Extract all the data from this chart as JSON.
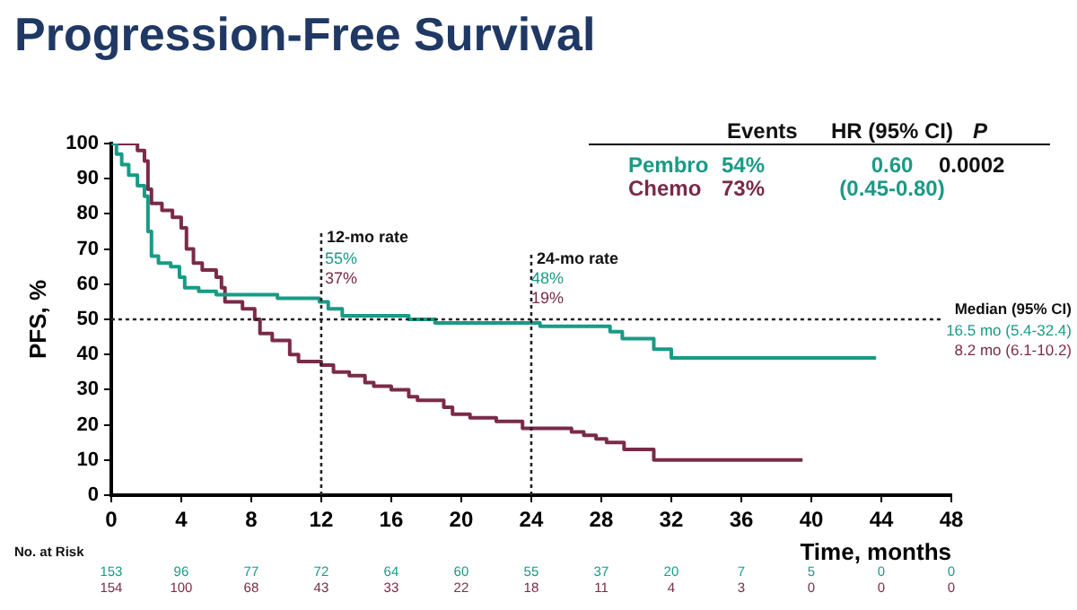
{
  "chart_data": {
    "type": "step",
    "title": "Progression-Free Survival",
    "xlabel": "Time, months",
    "ylabel": "PFS, %",
    "xlim": [
      0,
      48
    ],
    "xticks": [
      0,
      4,
      8,
      12,
      16,
      20,
      24,
      28,
      32,
      36,
      40,
      44,
      48
    ],
    "ylim": [
      0,
      100
    ],
    "yticks": [
      0,
      10,
      20,
      30,
      40,
      50,
      60,
      70,
      80,
      90,
      100
    ],
    "grid": false,
    "legend": "top right",
    "series": [
      {
        "name": "Pembro",
        "color": "#1a9a86",
        "x": [
          0,
          0.3,
          0.6,
          1,
          1.5,
          1.9,
          2.1,
          2.3,
          2.7,
          3.4,
          3.9,
          4.2,
          5,
          6,
          9.5,
          11.9,
          12.4,
          13.2,
          17,
          18.5,
          24.5,
          28.5,
          29.2,
          31,
          32,
          43.7
        ],
        "values": [
          100,
          97,
          94,
          91,
          88,
          85,
          75,
          68,
          66,
          65,
          62,
          59,
          58,
          57,
          56,
          55,
          53,
          51,
          50,
          49,
          48,
          46.5,
          44.5,
          41.5,
          39,
          39
        ]
      },
      {
        "name": "Chemo",
        "color": "#7a2a48",
        "x": [
          0,
          1.5,
          1.9,
          2.1,
          2.3,
          2.9,
          3.5,
          4,
          4.3,
          4.7,
          5.2,
          6,
          6.3,
          6.5,
          7.5,
          8.2,
          8.5,
          9.2,
          10.2,
          10.7,
          12,
          12.7,
          13.6,
          14.5,
          15,
          16,
          17,
          17.5,
          19,
          19.5,
          20.5,
          22,
          23.5,
          26.3,
          27,
          27.7,
          28.3,
          29.3,
          31,
          39.5
        ],
        "values": [
          100,
          98,
          95,
          87,
          83,
          81,
          79,
          76,
          70,
          66,
          64,
          62,
          59,
          55,
          53,
          50,
          46,
          44,
          40,
          38,
          37,
          35,
          34,
          32,
          31,
          30,
          28,
          27,
          25,
          23,
          22,
          21,
          19,
          18,
          17,
          16,
          15,
          13,
          10,
          10
        ]
      }
    ],
    "ref_lines": [
      {
        "axis": "y",
        "value": 50,
        "line_style": "dotted"
      },
      {
        "axis": "x",
        "value": 12,
        "label": "12-mo rate",
        "line_style": "dotted"
      },
      {
        "axis": "x",
        "value": 24,
        "label": "24-mo rate",
        "line_style": "dotted"
      }
    ],
    "annotations": [
      "Events",
      "HR (95% CI)",
      "P",
      "54%",
      "73%",
      "0.60",
      "(0.45-0.80)",
      "0.0002",
      "55%",
      "37%",
      "48%",
      "19%",
      "Median (95% CI)",
      "16.5 mo (5.4-32.4)",
      "8.2 mo (6.1-10.2)",
      "No. at Risk",
      "153",
      "96",
      "77",
      "72",
      "64",
      "60",
      "55",
      "37",
      "20",
      "7",
      "5",
      "0",
      "0",
      "154",
      "100",
      "68",
      "43",
      "33",
      "22",
      "18",
      "11",
      "4",
      "3",
      "0",
      "0",
      "0"
    ]
  }
}
